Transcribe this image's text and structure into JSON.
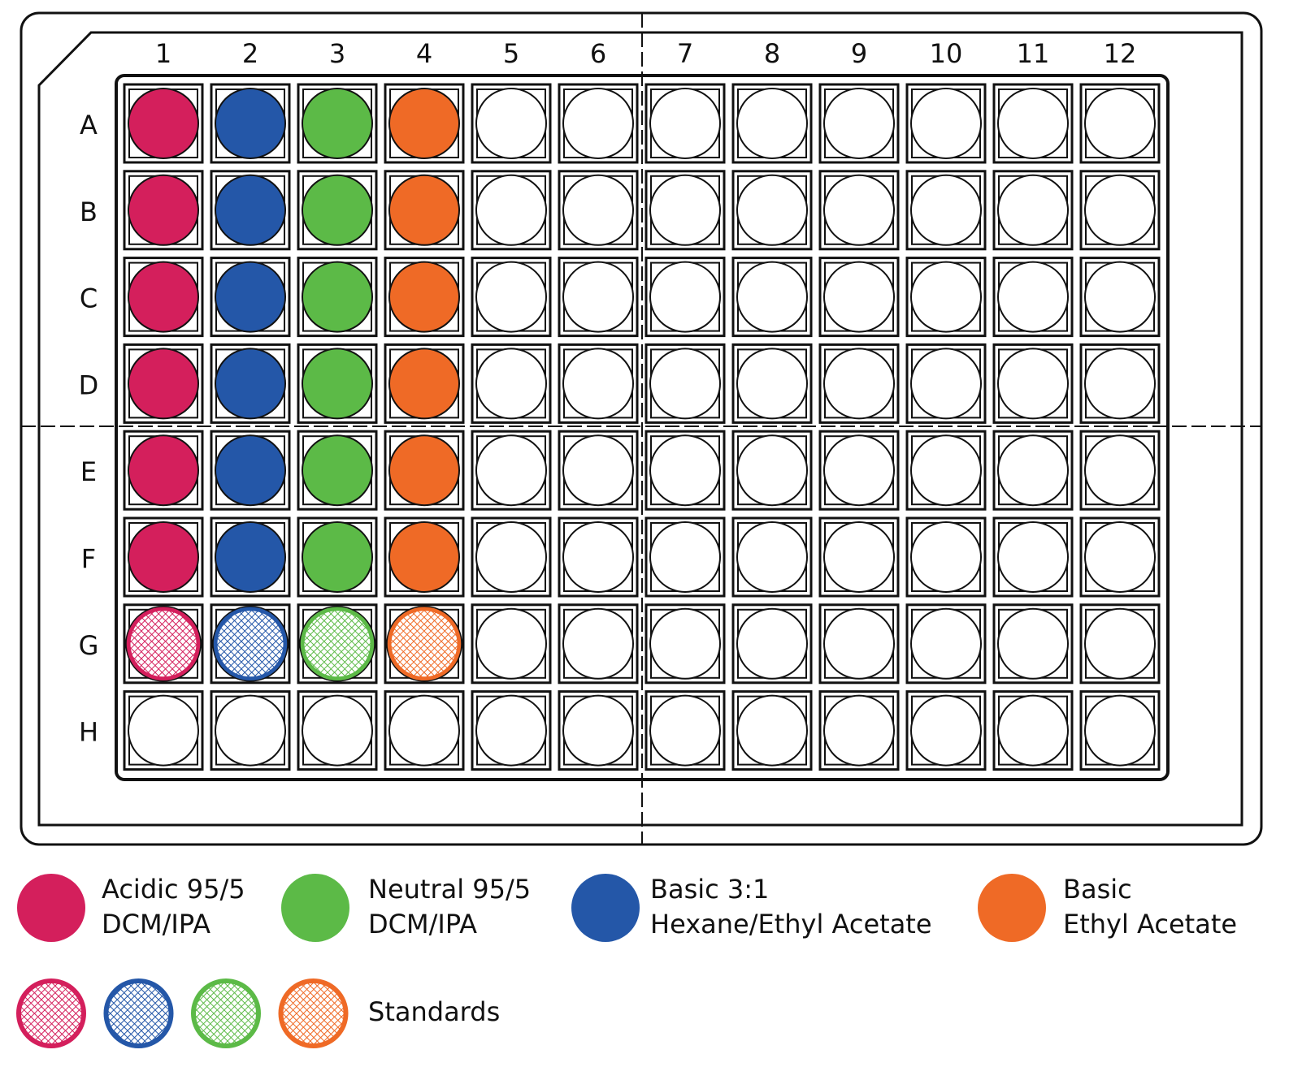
{
  "plate": {
    "columns": [
      "1",
      "2",
      "3",
      "4",
      "5",
      "6",
      "7",
      "8",
      "9",
      "10",
      "11",
      "12"
    ],
    "rows": [
      "A",
      "B",
      "C",
      "D",
      "E",
      "F",
      "G",
      "H"
    ]
  },
  "legend": {
    "items": [
      {
        "lines": [
          "Acidic 95/5",
          "DCM/IPA"
        ],
        "color": "#d41f5c"
      },
      {
        "lines": [
          "Neutral 95/5",
          "DCM/IPA"
        ],
        "color": "#5cba47"
      },
      {
        "lines": [
          "Basic 3:1",
          "Hexane/Ethyl Acetate"
        ],
        "color": "#2457a8"
      },
      {
        "lines": [
          "Basic",
          "Ethyl Acetate"
        ],
        "color": "#ef6a26"
      }
    ],
    "standards": "Standards"
  }
}
